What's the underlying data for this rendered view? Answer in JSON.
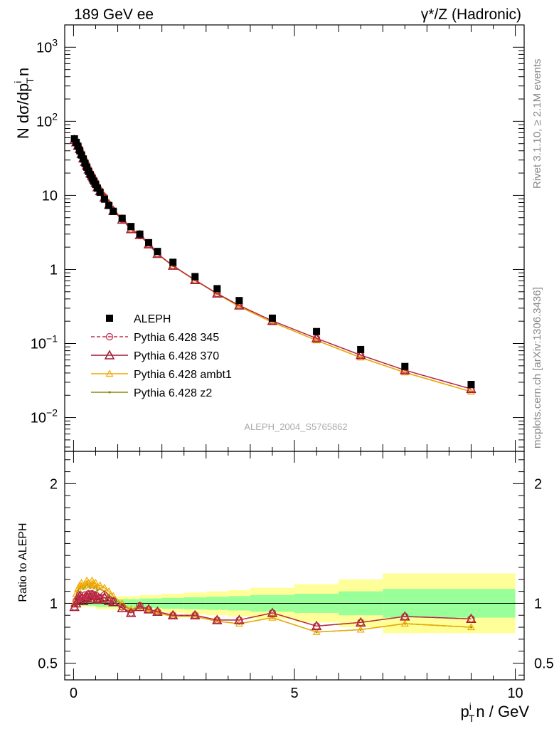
{
  "header": {
    "left": "189 GeV ee",
    "right": "γ*/Z (Hadronic)"
  },
  "side_labels": {
    "rivet": "Rivet 3.1.10, ≥ 2.1M events",
    "mcplots": "mcplots.cern.ch [arXiv:1306.3436]"
  },
  "watermark": "ALEPH_2004_S5765862",
  "axes": {
    "ylabel_main_prefix": "N dσ/dp",
    "ylabel_main_sub": "T",
    "ylabel_main_sup": "i",
    "ylabel_main_suffix": "n",
    "ylabel_ratio": "Ratio to ALEPH",
    "xlabel_prefix": "p",
    "xlabel_sub": "T",
    "xlabel_sup": "i",
    "xlabel_suffix": "n / GeV"
  },
  "colors": {
    "data": "#000000",
    "p345": "#c0304a",
    "p370": "#a01830",
    "ambt1": "#f0a800",
    "z2": "#8a8a10",
    "band_inner": "#99ff99",
    "band_outer": "#ffff99"
  },
  "chart_data": {
    "type": "scatter",
    "x": [
      0.02,
      0.06,
      0.1,
      0.14,
      0.18,
      0.22,
      0.26,
      0.3,
      0.34,
      0.38,
      0.42,
      0.46,
      0.5,
      0.54,
      0.6,
      0.7,
      0.8,
      0.9,
      1.1,
      1.3,
      1.5,
      1.7,
      1.9,
      2.25,
      2.75,
      3.25,
      3.75,
      4.5,
      5.5,
      6.5,
      7.5,
      9.0
    ],
    "xlim": [
      -0.2,
      10.2
    ],
    "ylim_main": [
      0.0035,
      2000
    ],
    "ylim_ratio": [
      0.36,
      2.27
    ],
    "yscale_main": "log",
    "main_yticks": [
      {
        "v": 0.01,
        "label": "10^-2"
      },
      {
        "v": 0.1,
        "label": "10^-1"
      },
      {
        "v": 1,
        "label": "1"
      },
      {
        "v": 10,
        "label": "10"
      },
      {
        "v": 100,
        "label": "10^2"
      },
      {
        "v": 1000,
        "label": "10^3"
      }
    ],
    "ratio_yticks": [
      {
        "v": 0.5,
        "label": "0.5"
      },
      {
        "v": 1,
        "label": "1"
      },
      {
        "v": 2,
        "label": "2"
      }
    ],
    "xticks": [
      {
        "v": 0,
        "label": "0"
      },
      {
        "v": 5,
        "label": "5"
      },
      {
        "v": 10,
        "label": "10"
      }
    ],
    "data": {
      "name": "ALEPH",
      "y": [
        58,
        52,
        46,
        40,
        35,
        31,
        27,
        24,
        21,
        19,
        17,
        15.5,
        14,
        12.5,
        11,
        8.9,
        7.3,
        6.1,
        4.9,
        3.8,
        3.0,
        2.3,
        1.75,
        1.25,
        0.8,
        0.55,
        0.38,
        0.22,
        0.145,
        0.083,
        0.049,
        0.028
      ]
    },
    "series": [
      {
        "name": "Pythia 6.428 345",
        "key": "p345",
        "ratio": [
          0.97,
          1.02,
          1.04,
          1.07,
          1.05,
          1.03,
          1.07,
          1.06,
          1.08,
          1.05,
          1.08,
          1.06,
          1.07,
          1.04,
          1.05,
          1.07,
          1.03,
          1.02,
          0.97,
          0.92,
          0.98,
          0.95,
          0.93,
          0.9,
          0.9,
          0.86,
          0.86,
          0.92,
          0.81,
          0.84,
          0.89,
          0.87
        ],
        "line": "dashed",
        "marker": "circle"
      },
      {
        "name": "Pythia 6.428 370",
        "key": "p370",
        "ratio": [
          0.97,
          1.0,
          1.02,
          1.06,
          1.04,
          1.02,
          1.05,
          1.05,
          1.07,
          1.04,
          1.07,
          1.06,
          1.06,
          1.03,
          1.04,
          1.05,
          1.02,
          1.01,
          0.96,
          0.92,
          0.97,
          0.95,
          0.93,
          0.9,
          0.9,
          0.86,
          0.86,
          0.92,
          0.81,
          0.84,
          0.89,
          0.87
        ],
        "line": "solid",
        "marker": "triangle"
      },
      {
        "name": "Pythia 6.428 ambt1",
        "key": "ambt1",
        "ratio": [
          1.0,
          1.08,
          1.12,
          1.15,
          1.17,
          1.14,
          1.16,
          1.19,
          1.17,
          1.15,
          1.19,
          1.16,
          1.17,
          1.14,
          1.15,
          1.13,
          1.1,
          1.06,
          1.0,
          0.95,
          0.98,
          0.94,
          0.92,
          0.89,
          0.89,
          0.85,
          0.83,
          0.88,
          0.76,
          0.78,
          0.83,
          0.8
        ],
        "line": "solid",
        "marker": "triangle-small"
      },
      {
        "name": "Pythia 6.428 z2",
        "key": "z2",
        "ratio": [
          0.99,
          1.06,
          1.1,
          1.13,
          1.14,
          1.12,
          1.14,
          1.16,
          1.15,
          1.13,
          1.16,
          1.13,
          1.14,
          1.11,
          1.12,
          1.1,
          1.07,
          1.04,
          0.99,
          0.94,
          0.98,
          0.94,
          0.92,
          0.89,
          0.89,
          0.85,
          0.83,
          0.88,
          0.76,
          0.78,
          0.83,
          0.8
        ],
        "line": "solid",
        "marker": "dot"
      }
    ],
    "bands": {
      "edges": [
        0,
        0.5,
        1.0,
        1.5,
        2.0,
        2.5,
        3.0,
        3.5,
        4.0,
        5.0,
        6.0,
        7.0,
        10.0
      ],
      "inner": [
        0.02,
        0.03,
        0.035,
        0.04,
        0.045,
        0.05,
        0.055,
        0.06,
        0.07,
        0.08,
        0.1,
        0.12
      ],
      "outer": [
        0.03,
        0.05,
        0.06,
        0.07,
        0.08,
        0.09,
        0.1,
        0.11,
        0.13,
        0.16,
        0.2,
        0.25
      ]
    }
  }
}
